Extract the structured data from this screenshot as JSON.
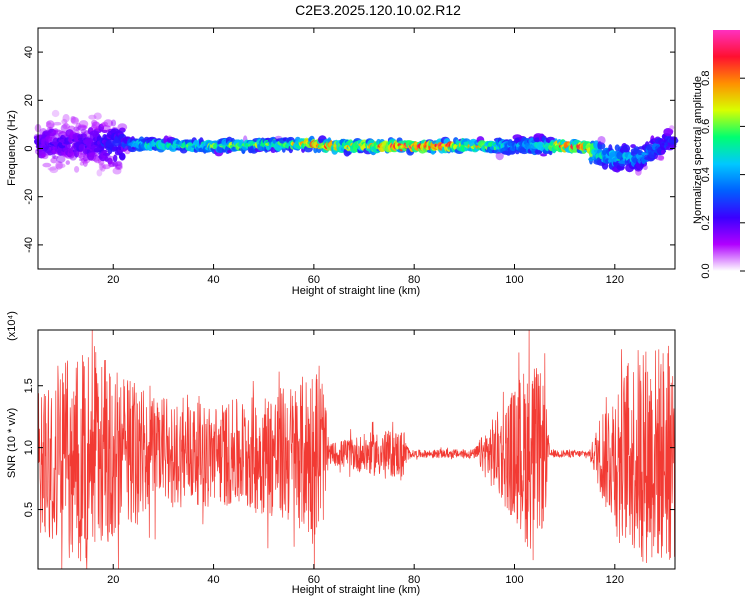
{
  "title": "C2E3.2025.120.10.02.R12",
  "colors": {
    "snr_line": "#f23a33",
    "colormap": [
      "#ffffff",
      "#b000ff",
      "#3a00ff",
      "#0060ff",
      "#00c8ff",
      "#00ff70",
      "#d8ff00",
      "#ff9000",
      "#ff1030",
      "#ff30c0"
    ]
  },
  "chart_data": [
    {
      "type": "heatmap",
      "title": "C2E3.2025.120.10.02.R12",
      "xlabel": "Height of straight line (km)",
      "ylabel": "Frequency (Hz)",
      "xlim": [
        5,
        132
      ],
      "ylim": [
        -50,
        50
      ],
      "x_ticks": [
        20,
        40,
        60,
        80,
        100,
        120
      ],
      "y_ticks": [
        40,
        20,
        0,
        -20,
        -40
      ],
      "y_tick_labels": [
        "40",
        "20",
        "0",
        "-20",
        "-40"
      ],
      "grid": false,
      "colorbar": {
        "label": "Normalized spectral amplitude",
        "range": [
          0,
          1
        ],
        "ticks": [
          "0.0",
          "0.2",
          "0.4",
          "0.6",
          "0.8"
        ]
      },
      "spectral_band_center_hz": [
        [
          5,
          2
        ],
        [
          20,
          2
        ],
        [
          40,
          1
        ],
        [
          60,
          2
        ],
        [
          62,
          1
        ],
        [
          80,
          1
        ],
        [
          100,
          1
        ],
        [
          114,
          1
        ],
        [
          118,
          -3
        ],
        [
          125,
          -4
        ],
        [
          132,
          4
        ]
      ],
      "band_amplitude_profile": [
        [
          5,
          0.2
        ],
        [
          15,
          0.22
        ],
        [
          22,
          0.3
        ],
        [
          25,
          0.55
        ],
        [
          40,
          0.62
        ],
        [
          55,
          0.65
        ],
        [
          60,
          0.85
        ],
        [
          63,
          0.95
        ],
        [
          66,
          0.75
        ],
        [
          78,
          0.95
        ],
        [
          88,
          0.92
        ],
        [
          95,
          0.7
        ],
        [
          100,
          0.4
        ],
        [
          106,
          0.6
        ],
        [
          110,
          0.9
        ],
        [
          114,
          0.9
        ],
        [
          117,
          0.55
        ],
        [
          125,
          0.45
        ],
        [
          132,
          0.3
        ]
      ]
    },
    {
      "type": "line",
      "xlabel": "Height of straight line (km)",
      "ylabel": "SNR (10 * v/v)",
      "y_multiplier": "(x10⁴)",
      "xlim": [
        5,
        132
      ],
      "ylim": [
        0.02,
        1.95
      ],
      "x_ticks": [
        20,
        40,
        60,
        80,
        100,
        120
      ],
      "y_ticks": [
        0.5,
        1.0,
        1.5
      ],
      "y_tick_labels": [
        "0.5",
        "1.0",
        "1.5"
      ],
      "grid": false,
      "series": [
        {
          "mean": 0.95,
          "amplitude_envelope": [
            [
              5,
              0.65
            ],
            [
              10,
              0.75
            ],
            [
              15,
              0.9
            ],
            [
              20,
              0.7
            ],
            [
              30,
              0.45
            ],
            [
              40,
              0.4
            ],
            [
              50,
              0.5
            ],
            [
              57,
              0.6
            ],
            [
              60,
              0.75
            ],
            [
              62,
              0.55
            ],
            [
              63,
              0.08
            ],
            [
              66,
              0.12
            ],
            [
              72,
              0.18
            ],
            [
              78,
              0.2
            ],
            [
              79,
              0.03
            ],
            [
              92,
              0.04
            ],
            [
              95,
              0.25
            ],
            [
              100,
              0.55
            ],
            [
              103,
              0.8
            ],
            [
              106,
              0.6
            ],
            [
              107,
              0.03
            ],
            [
              115,
              0.03
            ],
            [
              118,
              0.45
            ],
            [
              125,
              0.9
            ],
            [
              132,
              0.9
            ]
          ]
        }
      ]
    }
  ]
}
